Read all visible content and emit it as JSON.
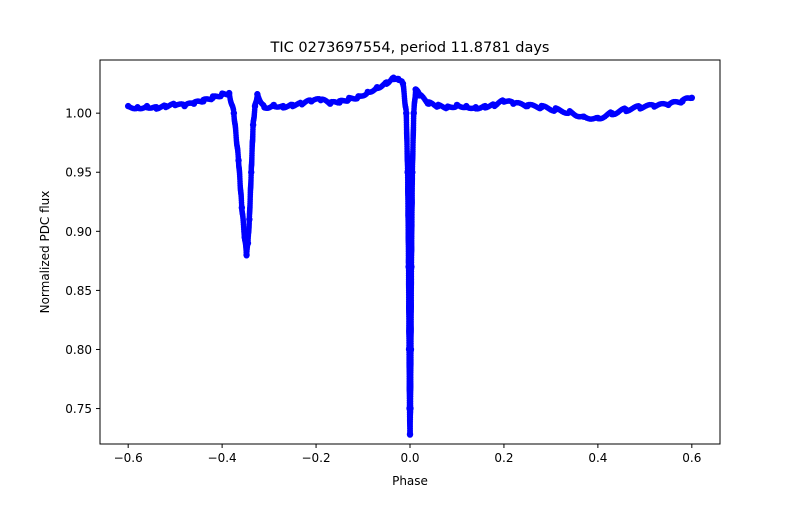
{
  "chart_data": {
    "type": "scatter",
    "title": "TIC 0273697554, period 11.8781 days",
    "xlabel": "Phase",
    "ylabel": "Normalized PDC flux",
    "xlim": [
      -0.66,
      0.66
    ],
    "ylim": [
      0.72,
      1.045
    ],
    "xticks": [
      -0.6,
      -0.4,
      -0.2,
      0.0,
      0.2,
      0.4,
      0.6
    ],
    "xtick_labels": [
      "−0.6",
      "−0.4",
      "−0.2",
      "0.0",
      "0.2",
      "0.4",
      "0.6"
    ],
    "yticks": [
      0.75,
      0.8,
      0.85,
      0.9,
      0.95,
      1.0
    ],
    "ytick_labels": [
      "0.75",
      "0.80",
      "0.85",
      "0.90",
      "0.95",
      "1.00"
    ],
    "grid": false,
    "marker_color": "#0000ff",
    "series": [
      {
        "name": "PDC flux",
        "x": [
          -0.6,
          -0.58,
          -0.56,
          -0.54,
          -0.52,
          -0.5,
          -0.48,
          -0.46,
          -0.44,
          -0.42,
          -0.4,
          -0.385,
          -0.375,
          -0.365,
          -0.358,
          -0.352,
          -0.348,
          -0.345,
          -0.342,
          -0.338,
          -0.334,
          -0.33,
          -0.325,
          -0.31,
          -0.29,
          -0.27,
          -0.25,
          -0.23,
          -0.21,
          -0.19,
          -0.17,
          -0.15,
          -0.13,
          -0.11,
          -0.09,
          -0.07,
          -0.05,
          -0.035,
          -0.025,
          -0.015,
          -0.008,
          -0.005,
          -0.003,
          -0.002,
          -0.001,
          0.0,
          0.001,
          0.002,
          0.003,
          0.005,
          0.008,
          0.012,
          0.02,
          0.04,
          0.06,
          0.08,
          0.1,
          0.12,
          0.14,
          0.16,
          0.18,
          0.2,
          0.22,
          0.25,
          0.28,
          0.31,
          0.34,
          0.37,
          0.4,
          0.43,
          0.46,
          0.49,
          0.52,
          0.55,
          0.58,
          0.6
        ],
        "y": [
          1.006,
          1.005,
          1.006,
          1.005,
          1.006,
          1.007,
          1.006,
          1.008,
          1.01,
          1.013,
          1.016,
          1.017,
          1.0,
          0.96,
          0.92,
          0.895,
          0.88,
          0.89,
          0.91,
          0.95,
          0.99,
          1.006,
          1.016,
          1.005,
          1.007,
          1.006,
          1.007,
          1.008,
          1.01,
          1.011,
          1.008,
          1.009,
          1.012,
          1.014,
          1.018,
          1.022,
          1.026,
          1.03,
          1.029,
          1.025,
          1.0,
          0.95,
          0.87,
          0.8,
          0.75,
          0.728,
          0.75,
          0.8,
          0.87,
          0.95,
          1.0,
          1.02,
          1.015,
          1.008,
          1.006,
          1.005,
          1.007,
          1.006,
          1.005,
          1.006,
          1.007,
          1.01,
          1.008,
          1.006,
          1.005,
          1.003,
          1.001,
          0.997,
          0.996,
          1.0,
          1.003,
          1.005,
          1.006,
          1.007,
          1.01,
          1.013
        ]
      }
    ]
  }
}
